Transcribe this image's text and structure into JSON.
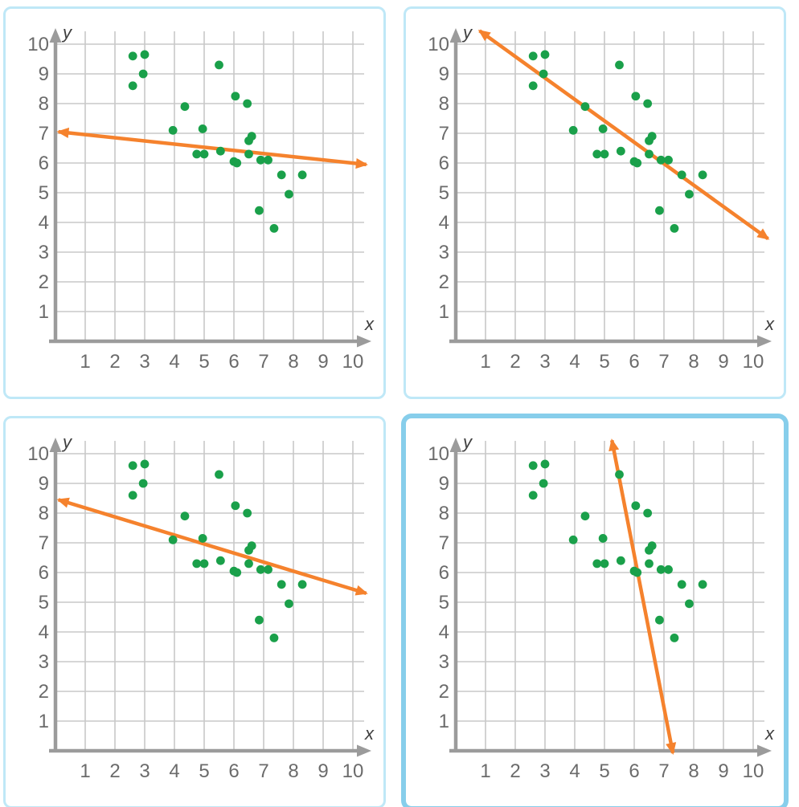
{
  "page": {
    "description": "Four scatter-plot answer choices showing the same data with different candidate trend lines",
    "background": "#ffffff"
  },
  "colors": {
    "point": "#1aa04a",
    "trend_line": "#f5822d",
    "axis": "#9b9b9b",
    "grid": "#c8c8c8",
    "tick_label": "#6b6b6b",
    "axis_letter": "#404040",
    "card_border": "#bfe8f7",
    "card_border_selected": "#87ceeb",
    "card_background": "#ffffff"
  },
  "chart_data": {
    "type": "scatter",
    "title": "",
    "xlabel": "x",
    "ylabel": "y",
    "xlim": [
      0,
      10.5
    ],
    "ylim": [
      0,
      10.5
    ],
    "grid": true,
    "x_ticks": [
      1,
      2,
      3,
      4,
      5,
      6,
      7,
      8,
      9,
      10
    ],
    "y_ticks": [
      1,
      2,
      3,
      4,
      5,
      6,
      7,
      8,
      9,
      10
    ],
    "points": [
      [
        2.6,
        9.6
      ],
      [
        3.0,
        9.65
      ],
      [
        2.95,
        9.0
      ],
      [
        2.6,
        8.6
      ],
      [
        5.5,
        9.3
      ],
      [
        6.05,
        8.25
      ],
      [
        6.45,
        8.0
      ],
      [
        4.35,
        7.9
      ],
      [
        3.95,
        7.1
      ],
      [
        4.95,
        7.15
      ],
      [
        6.6,
        6.9
      ],
      [
        6.5,
        6.75
      ],
      [
        5.55,
        6.4
      ],
      [
        4.75,
        6.3
      ],
      [
        5.0,
        6.3
      ],
      [
        6.5,
        6.3
      ],
      [
        6.0,
        6.05
      ],
      [
        6.1,
        6.0
      ],
      [
        6.9,
        6.1
      ],
      [
        7.15,
        6.1
      ],
      [
        7.6,
        5.6
      ],
      [
        8.3,
        5.6
      ],
      [
        7.85,
        4.95
      ],
      [
        6.85,
        4.4
      ],
      [
        7.35,
        3.8
      ]
    ],
    "panels": [
      {
        "name": "option-1",
        "position": "top-left",
        "selected": false,
        "trend_line": {
          "x1": 0.1,
          "y1": 7.05,
          "x2": 10.45,
          "y2": 5.95,
          "arrowheads": "both"
        }
      },
      {
        "name": "option-2",
        "position": "top-right",
        "selected": false,
        "trend_line": {
          "x1": 0.8,
          "y1": 10.45,
          "x2": 10.5,
          "y2": 3.45,
          "arrowheads": "both"
        }
      },
      {
        "name": "option-3",
        "position": "bottom-left",
        "selected": false,
        "trend_line": {
          "x1": 0.1,
          "y1": 8.45,
          "x2": 10.45,
          "y2": 5.3,
          "arrowheads": "both"
        }
      },
      {
        "name": "option-4",
        "position": "bottom-right",
        "selected": true,
        "trend_line": {
          "x1": 5.25,
          "y1": 10.45,
          "x2": 7.3,
          "y2": -0.08,
          "arrowheads": "both"
        }
      }
    ]
  }
}
